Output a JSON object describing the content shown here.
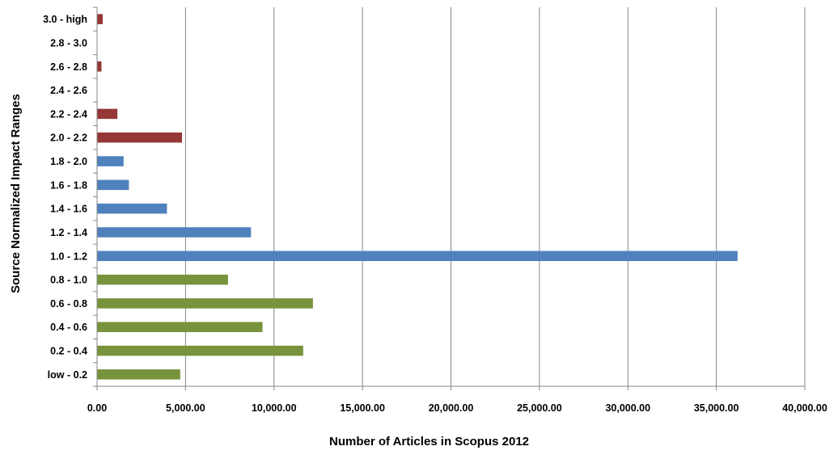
{
  "chart_data": {
    "type": "bar",
    "orientation": "horizontal",
    "xlabel": "Number of Articles in Scopus 2012",
    "ylabel": "Source Normalized Impact Ranges",
    "xlim": [
      0,
      40000
    ],
    "xticks": [
      0,
      5000,
      10000,
      15000,
      20000,
      25000,
      30000,
      35000,
      40000
    ],
    "xtick_labels": [
      "0.00",
      "5,000.00",
      "10,000.00",
      "15,000.00",
      "20,000.00",
      "25,000.00",
      "30,000.00",
      "35,000.00",
      "40,000.00"
    ],
    "grid": "vertical",
    "legend": "none",
    "categories": [
      "low - 0.2",
      "0.2 - 0.4",
      "0.4 - 0.6",
      "0.6 - 0.8",
      "0.8 - 1.0",
      "1.0 - 1.2",
      "1.2 - 1.4",
      "1.4 - 1.6",
      "1.6 - 1.8",
      "1.8 - 2.0",
      "2.0 - 2.2",
      "2.2 - 2.4",
      "2.4 - 2.6",
      "2.6 - 2.8",
      "2.8 - 3.0",
      "3.0 - high"
    ],
    "values": [
      4700,
      11650,
      9350,
      12200,
      7400,
      36200,
      8700,
      3950,
      1800,
      1500,
      4800,
      1150,
      0,
      250,
      0,
      320
    ],
    "bar_colors": [
      "#77933c",
      "#77933c",
      "#77933c",
      "#77933c",
      "#77933c",
      "#4f81bd",
      "#4f81bd",
      "#4f81bd",
      "#4f81bd",
      "#4f81bd",
      "#953735",
      "#953735",
      "#953735",
      "#953735",
      "#953735",
      "#953735"
    ]
  },
  "colors": {
    "green": "#77933c",
    "blue": "#4f81bd",
    "red": "#953735",
    "gridline": "#868686",
    "axis": "#868686"
  }
}
